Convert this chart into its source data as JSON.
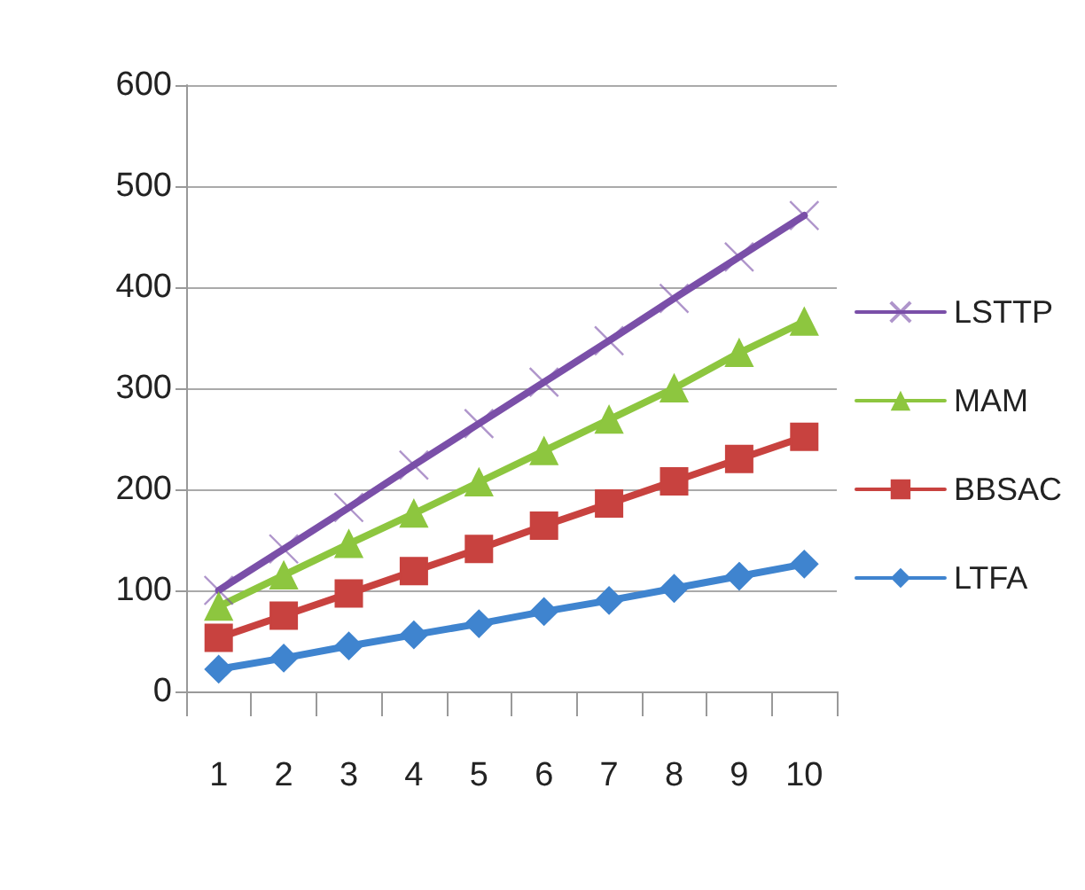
{
  "chart_data": {
    "type": "line",
    "categories": [
      "1",
      "2",
      "3",
      "4",
      "5",
      "6",
      "7",
      "8",
      "9",
      "10"
    ],
    "series": [
      {
        "name": "LSTTP",
        "color": "#7a4fa8",
        "marker": "cross",
        "values": [
          100,
          141,
          182,
          224,
          265,
          306,
          347,
          389,
          430,
          471
        ]
      },
      {
        "name": "MAM",
        "color": "#8dc63f",
        "marker": "triangle",
        "values": [
          84,
          115,
          146,
          176,
          207,
          238,
          269,
          300,
          335,
          366
        ]
      },
      {
        "name": "BBSAC",
        "color": "#c8423f",
        "marker": "square",
        "values": [
          53,
          75,
          97,
          119,
          141,
          164,
          186,
          208,
          230,
          252
        ]
      },
      {
        "name": "LTFA",
        "color": "#3f84cf",
        "marker": "diamond",
        "values": [
          22,
          33,
          45,
          56,
          67,
          79,
          90,
          102,
          114,
          126
        ]
      }
    ],
    "ylim": [
      0,
      600
    ],
    "yticks": [
      0,
      100,
      200,
      300,
      400,
      500,
      600
    ],
    "grid": "y",
    "legend": "right"
  }
}
